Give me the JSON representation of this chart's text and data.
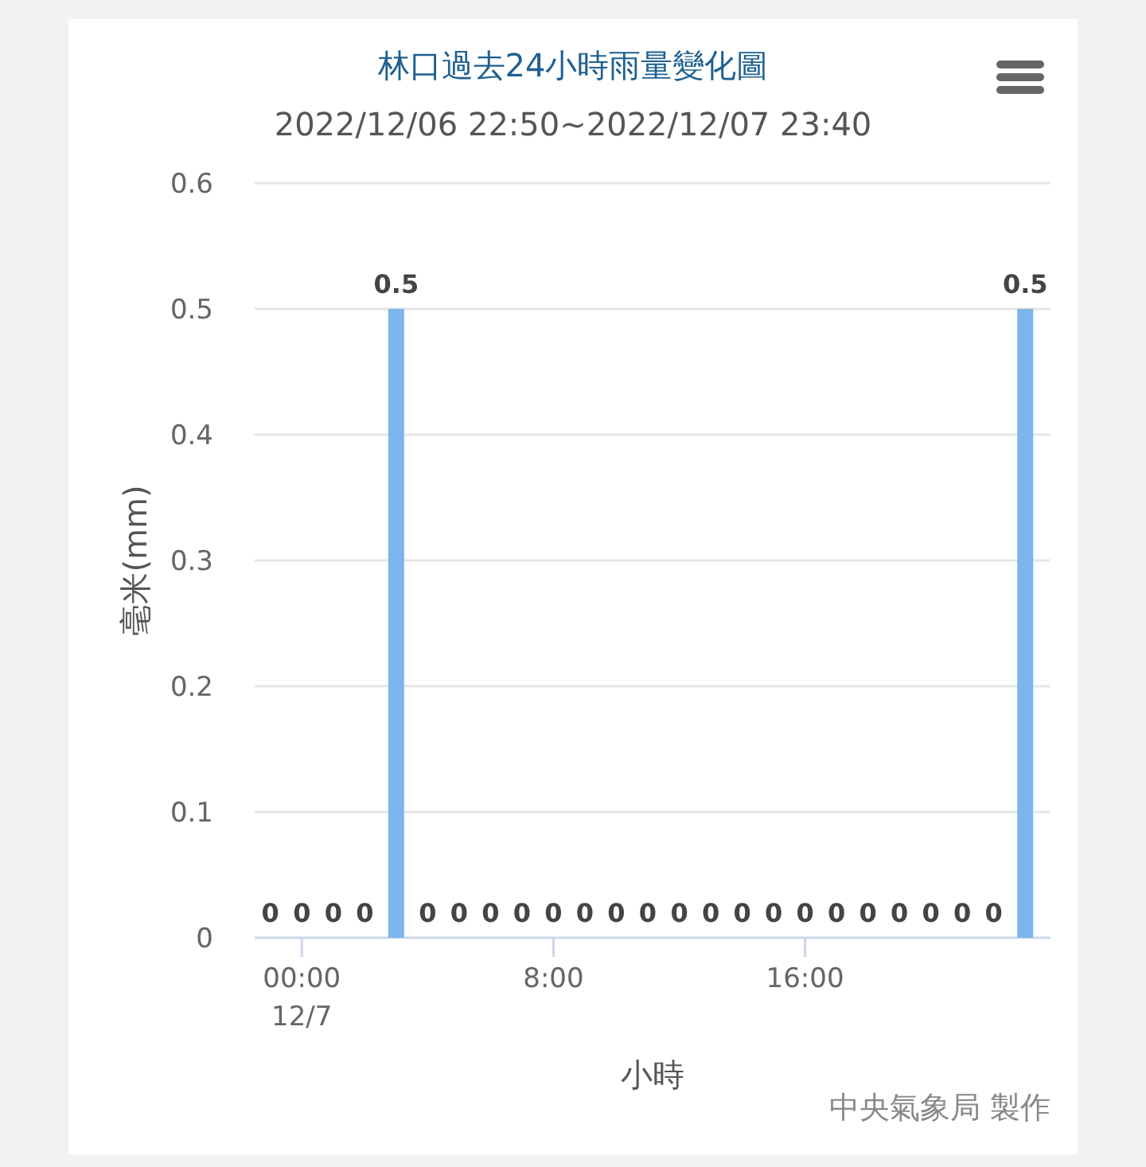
{
  "chart_data": {
    "type": "bar",
    "title": "林口過去24小時雨量變化圖",
    "subtitle": "2022/12/06 22:50~2022/12/07 23:40",
    "xlabel": "小時",
    "ylabel": "毫米(mm)",
    "annotations": [
      "中央氣象局 製作"
    ],
    "categories": [
      null,
      "00:00\n12/7",
      null,
      null,
      null,
      null,
      null,
      null,
      null,
      "8:00",
      null,
      null,
      null,
      null,
      null,
      null,
      null,
      "16:00",
      null,
      null,
      null,
      null,
      null,
      null,
      null
    ],
    "values": [
      0,
      0,
      0,
      0,
      0.5,
      0,
      0,
      0,
      0,
      0,
      0,
      0,
      0,
      0,
      0,
      0,
      0,
      0,
      0,
      0,
      0,
      0,
      0,
      0,
      0.5
    ],
    "color": "#7cb5ec",
    "ylim": [
      0,
      0.6
    ],
    "yticks": [
      0,
      0.1,
      0.2,
      0.3,
      0.4,
      0.5,
      0.6
    ],
    "grid": "y",
    "data_labels": true
  }
}
